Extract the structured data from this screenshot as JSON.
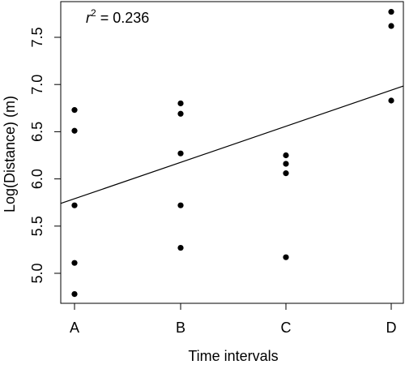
{
  "chart_data": {
    "type": "scatter",
    "title": "",
    "xlabel": "Time intervals",
    "ylabel": "Log(Distance) (m)",
    "categories": [
      "A",
      "B",
      "C",
      "D"
    ],
    "y_ticks": [
      5.0,
      5.5,
      6.0,
      6.5,
      7.0,
      7.5
    ],
    "y_tick_labels": [
      "5.0",
      "5.5",
      "6.0",
      "6.5",
      "7.0",
      "7.5"
    ],
    "ylim": [
      4.7,
      7.8
    ],
    "grid": false,
    "points": [
      {
        "x": "A",
        "y": 6.73
      },
      {
        "x": "A",
        "y": 6.51
      },
      {
        "x": "A",
        "y": 5.72
      },
      {
        "x": "A",
        "y": 5.11
      },
      {
        "x": "A",
        "y": 4.78
      },
      {
        "x": "B",
        "y": 6.8
      },
      {
        "x": "B",
        "y": 6.69
      },
      {
        "x": "B",
        "y": 6.27
      },
      {
        "x": "B",
        "y": 5.72
      },
      {
        "x": "B",
        "y": 5.27
      },
      {
        "x": "C",
        "y": 6.25
      },
      {
        "x": "C",
        "y": 6.16
      },
      {
        "x": "C",
        "y": 6.06
      },
      {
        "x": "C",
        "y": 5.17
      },
      {
        "x": "D",
        "y": 7.77
      },
      {
        "x": "D",
        "y": 7.62
      },
      {
        "x": "D",
        "y": 6.83
      }
    ],
    "regression_line": {
      "start": {
        "x": "A",
        "y": 5.79
      },
      "end": {
        "x": "D",
        "y": 6.94
      }
    },
    "annotation": {
      "italic_symbol": "r",
      "superscript": "2",
      "text": " = 0.236"
    }
  }
}
